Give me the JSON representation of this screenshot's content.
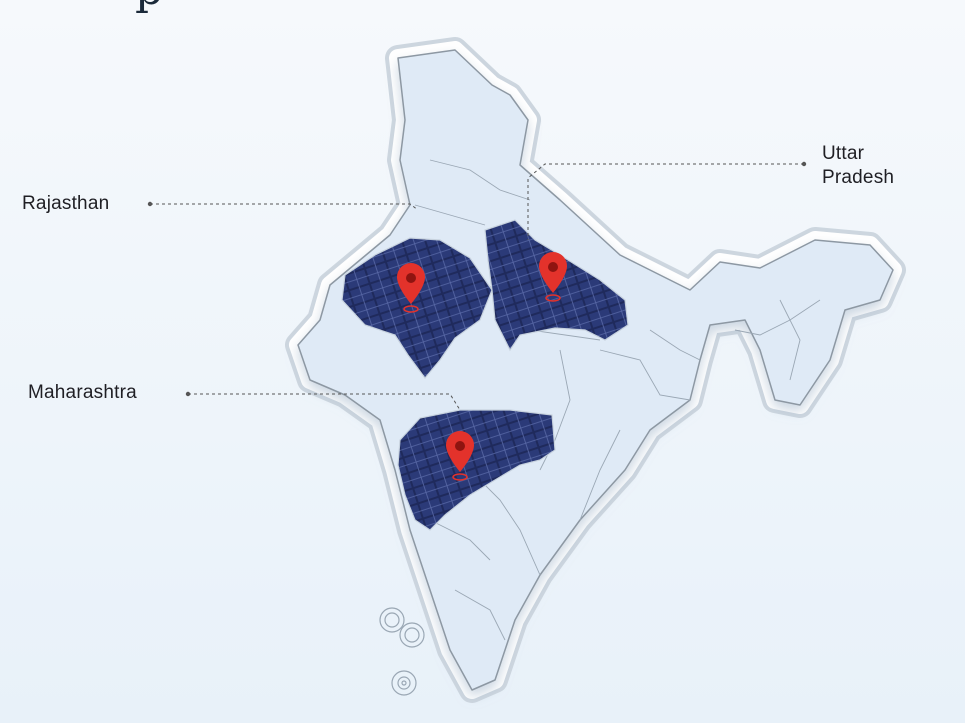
{
  "header": {
    "title_fragment": "p"
  },
  "map": {
    "country": "India",
    "highlighted_states": [
      {
        "name": "Rajasthan",
        "has_pin": true
      },
      {
        "name": "Uttar Pradesh",
        "name_lines": [
          "Uttar",
          "Pradesh"
        ],
        "has_pin": true
      },
      {
        "name": "Maharashtra",
        "has_pin": true
      }
    ],
    "pin_color": "#e3322b",
    "region_fill": "#dfeaf6",
    "panel_color": "#1f2a5c"
  }
}
